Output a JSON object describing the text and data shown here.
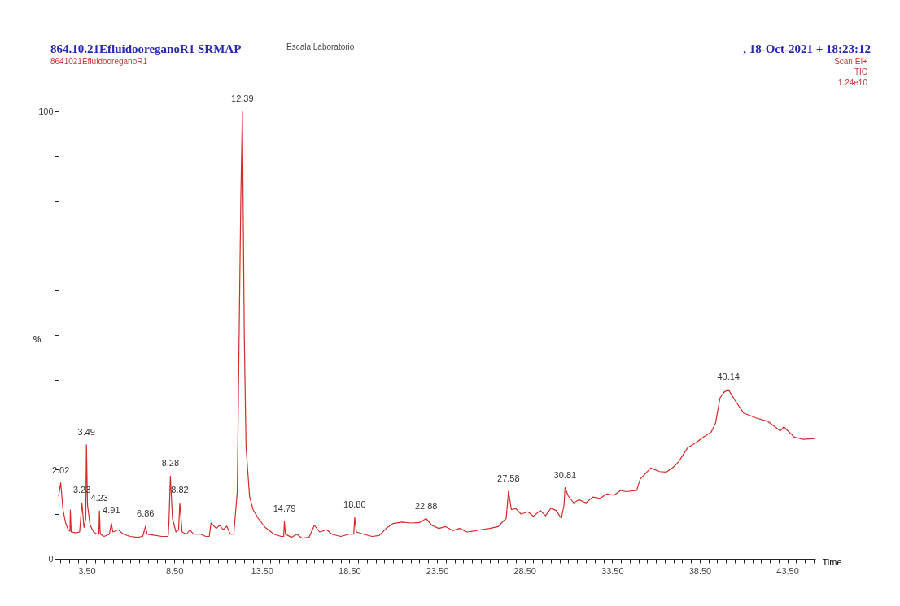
{
  "chart_data": {
    "type": "line",
    "title": "864.10.21EfluidooreganoR1 SRMAP",
    "subtitle": "8641021EfluidooreganoR1",
    "xlabel": "Time",
    "ylabel": "%",
    "annotations": [
      "Escala Laboratorio",
      ", 18-Oct-2021 + 18:23:12",
      "Scan EI+",
      "TIC",
      "1.24e10",
      {
        "text": "2.02",
        "x": 2.02,
        "y": 17.0
      },
      {
        "text": "3.23",
        "x": 3.23,
        "y": 12.5
      },
      {
        "text": "3.49",
        "x": 3.49,
        "y": 25.5
      },
      {
        "text": "4.23",
        "x": 4.23,
        "y": 10.7
      },
      {
        "text": "4.91",
        "x": 4.91,
        "y": 8.0
      },
      {
        "text": "6.86",
        "x": 6.86,
        "y": 7.3
      },
      {
        "text": "8.28",
        "x": 8.28,
        "y": 18.5
      },
      {
        "text": "8.82",
        "x": 8.82,
        "y": 12.5
      },
      {
        "text": "12.39",
        "x": 12.39,
        "y": 100
      },
      {
        "text": "14.79",
        "x": 14.79,
        "y": 8.3
      },
      {
        "text": "18.80",
        "x": 18.8,
        "y": 9.2
      },
      {
        "text": "22.88",
        "x": 22.88,
        "y": 9.0
      },
      {
        "text": "27.58",
        "x": 27.58,
        "y": 15.1
      },
      {
        "text": "30.81",
        "x": 30.81,
        "y": 15.9
      },
      {
        "text": "40.14",
        "x": 40.14,
        "y": 37.8
      }
    ],
    "series": [
      {
        "color": "#d42a2a",
        "x": [
          1.9,
          2.02,
          2.15,
          2.3,
          2.45,
          2.55,
          2.57,
          2.62,
          2.9,
          3.1,
          3.23,
          3.35,
          3.45,
          3.49,
          3.55,
          3.7,
          3.9,
          4.1,
          4.2,
          4.23,
          4.28,
          4.5,
          4.8,
          4.91,
          5.0,
          5.3,
          5.6,
          6.0,
          6.4,
          6.7,
          6.86,
          6.95,
          7.3,
          7.8,
          8.15,
          8.2,
          8.28,
          8.4,
          8.6,
          8.75,
          8.82,
          8.95,
          9.2,
          9.4,
          9.6,
          10.0,
          10.3,
          10.5,
          10.6,
          10.9,
          11.1,
          11.3,
          11.5,
          11.7,
          11.9,
          12.1,
          12.3,
          12.39,
          12.5,
          12.6,
          12.8,
          13.0,
          13.3,
          13.7,
          14.2,
          14.6,
          14.75,
          14.79,
          14.85,
          15.2,
          15.5,
          15.8,
          16.2,
          16.5,
          16.8,
          17.2,
          17.5,
          18.0,
          18.5,
          18.75,
          18.8,
          18.9,
          19.3,
          19.8,
          20.2,
          20.6,
          21.0,
          21.5,
          22.0,
          22.5,
          22.88,
          23.2,
          23.6,
          24.0,
          24.4,
          24.8,
          25.2,
          25.6,
          26.0,
          26.5,
          27.0,
          27.3,
          27.45,
          27.58,
          27.75,
          28.0,
          28.3,
          28.7,
          29.0,
          29.4,
          29.7,
          30.0,
          30.3,
          30.6,
          30.75,
          30.81,
          31.0,
          31.3,
          31.6,
          32.0,
          32.4,
          32.8,
          33.2,
          33.6,
          34.0,
          34.3,
          34.9,
          35.1,
          35.7,
          36.2,
          36.6,
          37.0,
          37.3,
          37.8,
          38.3,
          38.7,
          39.15,
          39.4,
          39.66,
          39.9,
          40.14,
          40.5,
          41.0,
          41.7,
          42.4,
          43.1,
          43.3,
          43.9,
          44.4,
          45.1
        ],
        "values": [
          14,
          17.0,
          11,
          8,
          6.5,
          6.2,
          10.9,
          6,
          5.8,
          6,
          12.5,
          7,
          9,
          25.5,
          12,
          7.5,
          6,
          5.5,
          5.5,
          10.7,
          5.5,
          5,
          5.5,
          8.0,
          6,
          6.5,
          5.5,
          5,
          4.8,
          5,
          7.3,
          5.5,
          5.3,
          5,
          5,
          8,
          18.5,
          9,
          6,
          6.5,
          12.5,
          6,
          5.5,
          6.5,
          5.5,
          5.5,
          5,
          5,
          8,
          6.8,
          7.5,
          6.5,
          7.3,
          5.5,
          5.5,
          15,
          80,
          100,
          50,
          25,
          14,
          11,
          9,
          7,
          5.5,
          5,
          5,
          8.3,
          5.5,
          4.8,
          5.5,
          4.6,
          4.8,
          7.5,
          6,
          6.5,
          5.5,
          5,
          5.5,
          5.5,
          9.2,
          6,
          5.5,
          5,
          5.2,
          6.8,
          7.9,
          8.2,
          8.0,
          8.1,
          9.0,
          7.5,
          6.8,
          7.2,
          6.3,
          6.8,
          6.0,
          6.2,
          6.5,
          6.8,
          7.2,
          8.5,
          9,
          15.1,
          11,
          11.2,
          10,
          10.5,
          9.5,
          10.8,
          9.6,
          11.3,
          10.8,
          9.0,
          12,
          15.9,
          14,
          12.5,
          13.2,
          12.5,
          13.8,
          13.5,
          14.5,
          14.2,
          15.3,
          15.0,
          15.3,
          17.8,
          20.3,
          19.5,
          19.4,
          20.5,
          21.7,
          24.8,
          26,
          27.2,
          28.3,
          30.3,
          36.0,
          37.3,
          37.8,
          35.5,
          32.6,
          31.5,
          30.7,
          28.6,
          29.5,
          27.2,
          26.7,
          26.9
        ]
      }
    ],
    "xlim": [
      1.9,
      45.1
    ],
    "ylim": [
      0,
      100
    ],
    "xticks": [
      {
        "value": 2.0,
        "label": null
      },
      {
        "value": 2.5,
        "label": null
      },
      {
        "value": 3.0,
        "label": null
      },
      {
        "value": 3.5,
        "label": "3.50"
      },
      {
        "value": 4.0,
        "label": null
      },
      {
        "value": 4.5,
        "label": null
      },
      {
        "value": 5.0,
        "label": null
      },
      {
        "value": 5.5,
        "label": null
      },
      {
        "value": 6.0,
        "label": null
      },
      {
        "value": 6.5,
        "label": null
      },
      {
        "value": 7.0,
        "label": null
      },
      {
        "value": 7.5,
        "label": null
      },
      {
        "value": 8.0,
        "label": null
      },
      {
        "value": 8.5,
        "label": "8.50"
      },
      {
        "value": 9.0,
        "label": null
      },
      {
        "value": 9.5,
        "label": null
      },
      {
        "value": 10.0,
        "label": null
      },
      {
        "value": 10.5,
        "label": null
      },
      {
        "value": 11.0,
        "label": null
      },
      {
        "value": 11.5,
        "label": null
      },
      {
        "value": 12.0,
        "label": null
      },
      {
        "value": 12.5,
        "label": null
      },
      {
        "value": 13.0,
        "label": null
      },
      {
        "value": 13.5,
        "label": "13.50"
      },
      {
        "value": 14.0,
        "label": null
      },
      {
        "value": 14.5,
        "label": null
      },
      {
        "value": 15.0,
        "label": null
      },
      {
        "value": 15.5,
        "label": null
      },
      {
        "value": 16.0,
        "label": null
      },
      {
        "value": 16.5,
        "label": null
      },
      {
        "value": 17.0,
        "label": null
      },
      {
        "value": 17.5,
        "label": null
      },
      {
        "value": 18.0,
        "label": null
      },
      {
        "value": 18.5,
        "label": "18.50"
      },
      {
        "value": 19.0,
        "label": null
      },
      {
        "value": 19.5,
        "label": null
      },
      {
        "value": 20.0,
        "label": null
      },
      {
        "value": 20.5,
        "label": null
      },
      {
        "value": 21.0,
        "label": null
      },
      {
        "value": 21.5,
        "label": null
      },
      {
        "value": 22.0,
        "label": null
      },
      {
        "value": 22.5,
        "label": null
      },
      {
        "value": 23.0,
        "label": null
      },
      {
        "value": 23.5,
        "label": "23.50"
      },
      {
        "value": 24.0,
        "label": null
      },
      {
        "value": 24.5,
        "label": null
      },
      {
        "value": 25.0,
        "label": null
      },
      {
        "value": 25.5,
        "label": null
      },
      {
        "value": 26.0,
        "label": null
      },
      {
        "value": 26.5,
        "label": null
      },
      {
        "value": 27.0,
        "label": null
      },
      {
        "value": 27.5,
        "label": null
      },
      {
        "value": 28.0,
        "label": null
      },
      {
        "value": 28.5,
        "label": "28.50"
      },
      {
        "value": 29.0,
        "label": null
      },
      {
        "value": 29.5,
        "label": null
      },
      {
        "value": 30.0,
        "label": null
      },
      {
        "value": 30.5,
        "label": null
      },
      {
        "value": 31.0,
        "label": null
      },
      {
        "value": 31.5,
        "label": null
      },
      {
        "value": 32.0,
        "label": null
      },
      {
        "value": 32.5,
        "label": null
      },
      {
        "value": 33.0,
        "label": null
      },
      {
        "value": 33.5,
        "label": "33.50"
      },
      {
        "value": 34.0,
        "label": null
      },
      {
        "value": 34.5,
        "label": null
      },
      {
        "value": 35.0,
        "label": null
      },
      {
        "value": 35.5,
        "label": null
      },
      {
        "value": 36.0,
        "label": null
      },
      {
        "value": 36.5,
        "label": null
      },
      {
        "value": 37.0,
        "label": null
      },
      {
        "value": 37.5,
        "label": null
      },
      {
        "value": 38.0,
        "label": null
      },
      {
        "value": 38.5,
        "label": "38.50"
      },
      {
        "value": 39.0,
        "label": null
      },
      {
        "value": 39.5,
        "label": null
      },
      {
        "value": 40.0,
        "label": null
      },
      {
        "value": 40.5,
        "label": null
      },
      {
        "value": 41.0,
        "label": null
      },
      {
        "value": 41.5,
        "label": null
      },
      {
        "value": 42.0,
        "label": null
      },
      {
        "value": 42.5,
        "label": null
      },
      {
        "value": 43.0,
        "label": null
      },
      {
        "value": 43.5,
        "label": "43.50"
      },
      {
        "value": 44.0,
        "label": null
      },
      {
        "value": 44.5,
        "label": null
      },
      {
        "value": 45.0,
        "label": null
      }
    ],
    "yticks": [
      0,
      {
        "value": 10,
        "label": null
      },
      {
        "value": 20,
        "label": null
      },
      {
        "value": 30,
        "label": null
      },
      {
        "value": 40,
        "label": null
      },
      {
        "value": 50,
        "label": null
      },
      {
        "value": 60,
        "label": null
      },
      {
        "value": 70,
        "label": null
      },
      {
        "value": 80,
        "label": null
      },
      {
        "value": 90,
        "label": null
      },
      100
    ],
    "grid": false,
    "legend": false,
    "marker": "none",
    "line_style": "solid"
  }
}
